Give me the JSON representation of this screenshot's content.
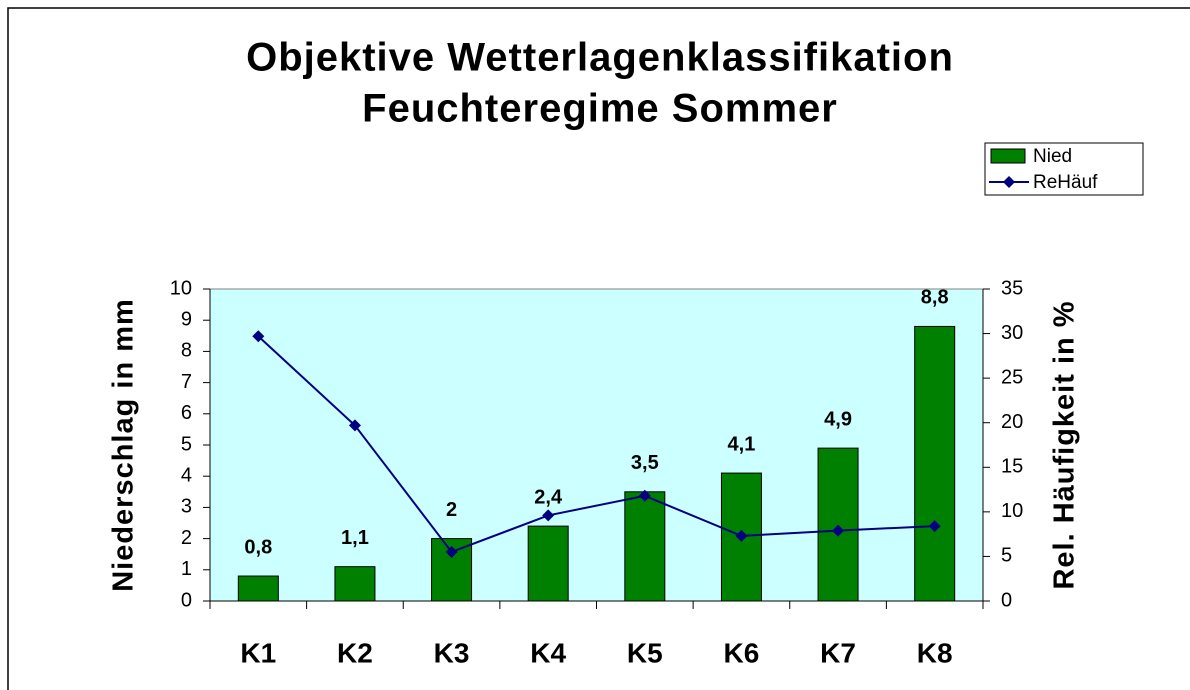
{
  "chart_data": {
    "type": "bar",
    "title": "Objektive Wetterlagenklassifikation",
    "subtitle": "Feuchteregime Sommer",
    "y_label": "Niederschlag in mm",
    "y2_label": "Rel. Häufigkeit in %",
    "categories": [
      "K1",
      "K2",
      "K3",
      "K4",
      "K5",
      "K6",
      "K7",
      "K8"
    ],
    "series": [
      {
        "name": "Nied",
        "type": "bar",
        "color": "#008000",
        "values": [
          0.8,
          1.1,
          2,
          2.4,
          3.5,
          4.1,
          4.9,
          8.8
        ],
        "value_labels": [
          "0,8",
          "1,1",
          "2",
          "2,4",
          "3,5",
          "4,1",
          "4,9",
          "8,8"
        ]
      },
      {
        "name": "ReHäuf",
        "type": "line",
        "axis": "y2",
        "color": "#000080",
        "values": [
          29.7,
          19.7,
          5.5,
          9.6,
          11.8,
          7.3,
          7.9,
          8.4
        ]
      }
    ],
    "ylim": [
      0,
      10
    ],
    "yticks": [
      0,
      1,
      2,
      3,
      4,
      5,
      6,
      7,
      8,
      9,
      10
    ],
    "y2lim": [
      0,
      35
    ],
    "y2ticks": [
      0,
      5,
      10,
      15,
      20,
      25,
      30,
      35
    ],
    "legend": "upper right",
    "plot_background": "#ccffff"
  }
}
